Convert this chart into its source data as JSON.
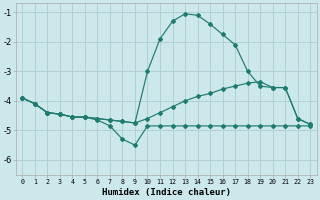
{
  "xlabel": "Humidex (Indice chaleur)",
  "background_color": "#cce8eb",
  "grid_color": "#b0d0d4",
  "line_color": "#1e7b70",
  "xlim": [
    -0.5,
    23.5
  ],
  "ylim": [
    -6.5,
    -0.7
  ],
  "yticks": [
    -6,
    -5,
    -4,
    -3,
    -2,
    -1
  ],
  "xticks": [
    0,
    1,
    2,
    3,
    4,
    5,
    6,
    7,
    8,
    9,
    10,
    11,
    12,
    13,
    14,
    15,
    16,
    17,
    18,
    19,
    20,
    21,
    22,
    23
  ],
  "line_mid_x": [
    0,
    1,
    2,
    3,
    4,
    5,
    6,
    7,
    8,
    9,
    10,
    11,
    12,
    13,
    14,
    15,
    16,
    17,
    18,
    19,
    20,
    21,
    22,
    23
  ],
  "line_mid_y": [
    -3.9,
    -4.1,
    -4.4,
    -4.45,
    -4.55,
    -4.55,
    -4.6,
    -4.65,
    -4.7,
    -4.75,
    -4.6,
    -4.4,
    -4.2,
    -4.0,
    -3.85,
    -3.75,
    -3.6,
    -3.5,
    -3.4,
    -3.35,
    -3.55,
    -3.55,
    -4.6,
    -4.8
  ],
  "line_peak_x": [
    0,
    1,
    2,
    3,
    4,
    5,
    6,
    7,
    8,
    9,
    10,
    11,
    12,
    13,
    14,
    15,
    16,
    17,
    18,
    19,
    20,
    21,
    22,
    23
  ],
  "line_peak_y": [
    -3.9,
    -4.1,
    -4.4,
    -4.45,
    -4.55,
    -4.55,
    -4.6,
    -4.65,
    -4.7,
    -4.75,
    -3.0,
    -1.9,
    -1.3,
    -1.05,
    -1.1,
    -1.4,
    -1.75,
    -2.1,
    -3.0,
    -3.5,
    -3.55,
    -3.55,
    -4.6,
    -4.8
  ],
  "line_low_x": [
    0,
    1,
    2,
    3,
    4,
    5,
    6,
    7,
    8,
    9,
    10,
    11,
    12,
    13,
    14,
    15,
    16,
    17,
    18,
    19,
    20,
    21,
    22,
    23
  ],
  "line_low_y": [
    -3.9,
    -4.1,
    -4.4,
    -4.45,
    -4.55,
    -4.55,
    -4.65,
    -4.85,
    -5.3,
    -5.5,
    -4.85,
    -4.85,
    -4.85,
    -4.85,
    -4.85,
    -4.85,
    -4.85,
    -4.85,
    -4.85,
    -4.85,
    -4.85,
    -4.85,
    -4.85,
    -4.85
  ]
}
